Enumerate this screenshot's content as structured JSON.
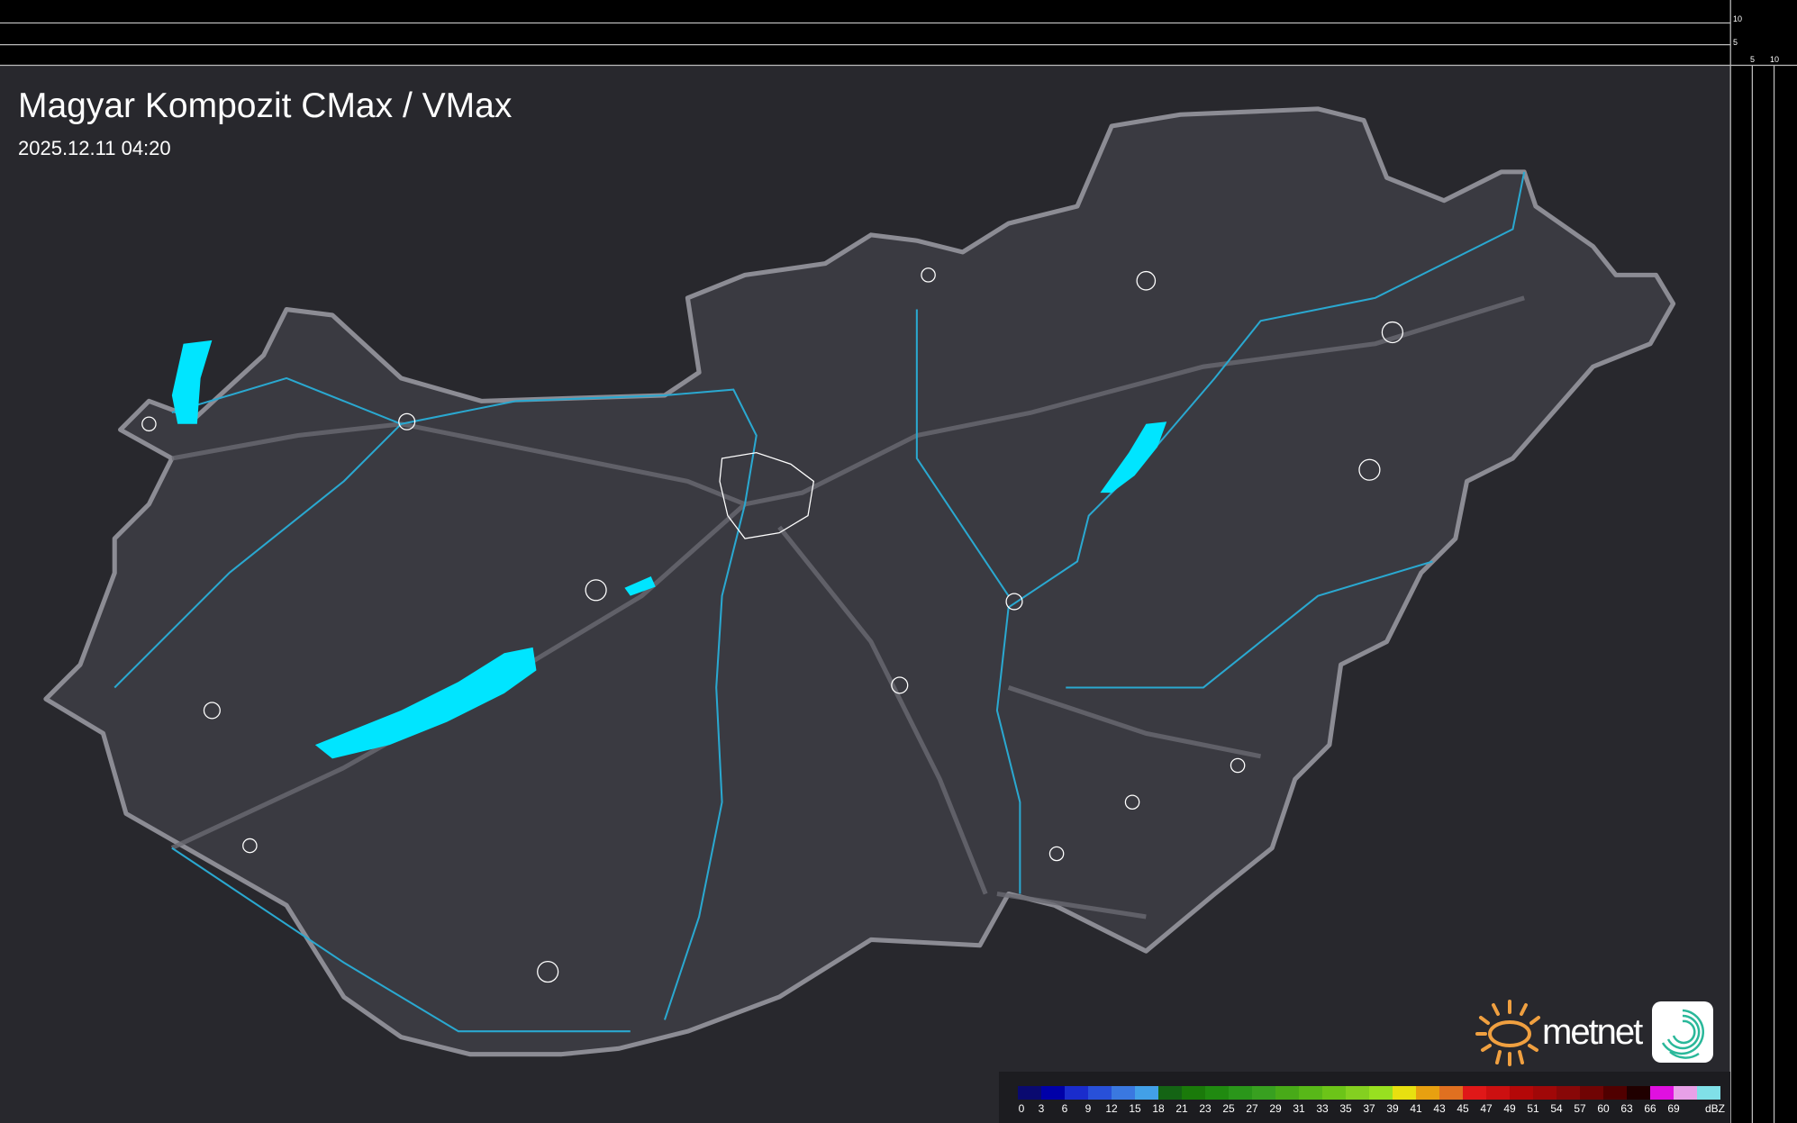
{
  "header": {
    "title": "Magyar Kompozit CMax / VMax",
    "timestamp": "2025.12.11 04:20"
  },
  "axes": {
    "vertical_ticks": [
      "10",
      "5"
    ],
    "horizontal_ticks": [
      "5",
      "10"
    ]
  },
  "legend": {
    "unit": "dBZ",
    "labels": [
      "0",
      "3",
      "6",
      "9",
      "12",
      "15",
      "18",
      "21",
      "23",
      "25",
      "27",
      "29",
      "31",
      "33",
      "35",
      "37",
      "39",
      "41",
      "43",
      "45",
      "47",
      "49",
      "51",
      "54",
      "57",
      "60",
      "63",
      "66",
      "69"
    ],
    "colors": [
      "#0a0a70",
      "#0000a8",
      "#1a2ccc",
      "#2850d8",
      "#3a78e0",
      "#42a0e8",
      "#146414",
      "#1a7a0a",
      "#208a10",
      "#2a961a",
      "#38a020",
      "#48aa18",
      "#58b818",
      "#6cc418",
      "#84d020",
      "#98e020",
      "#e8e010",
      "#e8a010",
      "#e07020",
      "#e01818",
      "#cc1010",
      "#b40808",
      "#a00808",
      "#880808",
      "#700404",
      "#500000",
      "#200000",
      "#e010e0",
      "#e8a0e8",
      "#80e0e8"
    ]
  },
  "logo": {
    "brand": "metnet",
    "accent": "#f0a040"
  },
  "colors": {
    "background": "#2a2a30",
    "country": "#3b3b42",
    "border": "#8a8a92",
    "river": "#2aa8d0",
    "lake": "#00e5ff",
    "city": "#ffffff"
  }
}
